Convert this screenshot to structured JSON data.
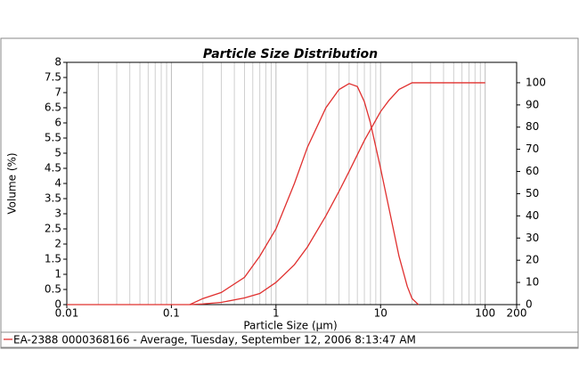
{
  "chart_data": {
    "type": "line",
    "title": "Particle Size Distribution",
    "xlabel": "Particle Size (µm)",
    "ylabel": "Volume (%)",
    "xscale": "log",
    "xlim": [
      0.01,
      200
    ],
    "xticks": [
      0.01,
      0.1,
      1,
      10,
      100,
      200
    ],
    "ylim": [
      0,
      8
    ],
    "yticks": [
      0,
      0.5,
      1,
      1.5,
      2,
      2.5,
      3,
      3.5,
      4,
      4.5,
      5,
      5.5,
      6,
      6.5,
      7,
      7.5,
      8
    ],
    "y2lim": [
      0,
      109.2
    ],
    "y2ticks": [
      0,
      10,
      20,
      30,
      40,
      50,
      60,
      70,
      80,
      90,
      100
    ],
    "grid": true,
    "series": [
      {
        "name": "EA-2388 0000368166 - Average, Tuesday, September 12, 2006 8:13:47 AM",
        "color": "#e0302f",
        "x": [
          0.01,
          0.15,
          0.2,
          0.3,
          0.5,
          0.7,
          1,
          1.5,
          2,
          3,
          4,
          5,
          6,
          7,
          8,
          10,
          12,
          15,
          18,
          20,
          23
        ],
        "values": [
          0,
          0,
          0.2,
          0.4,
          0.9,
          1.6,
          2.5,
          4,
          5.2,
          6.5,
          7.1,
          7.3,
          7.2,
          6.7,
          6,
          4.5,
          3.2,
          1.6,
          0.6,
          0.2,
          0
        ]
      },
      {
        "color": "#e0302f",
        "axis": "y2",
        "x": [
          0.15,
          0.2,
          0.3,
          0.5,
          0.7,
          1,
          1.5,
          2,
          3,
          4,
          5,
          7,
          10,
          12,
          15,
          20,
          100
        ],
        "values": [
          0,
          0.3,
          1,
          3,
          5,
          10,
          18,
          26,
          40,
          51,
          60,
          74,
          87,
          92,
          97,
          100,
          100
        ]
      }
    ]
  }
}
